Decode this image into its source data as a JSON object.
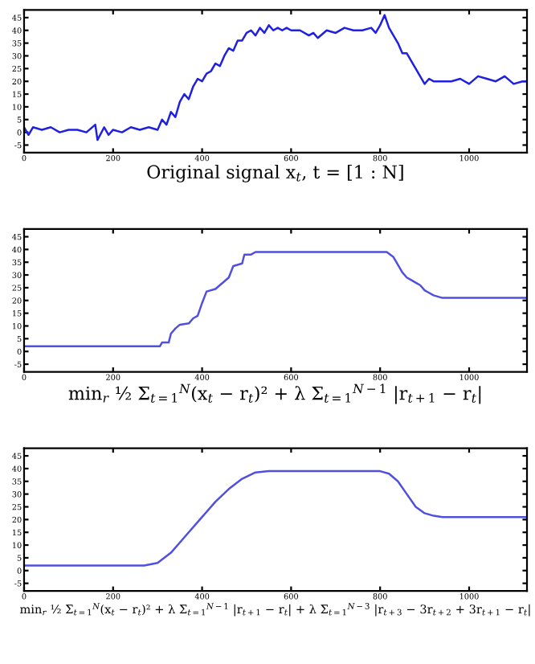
{
  "chart_data": [
    {
      "type": "line",
      "xlabel": "Original signal x$_{t}$, t = [1 : N]",
      "xlim": [
        0,
        1130
      ],
      "xticks": [
        0,
        200,
        400,
        600,
        800,
        1000
      ],
      "ylim": [
        -8,
        48
      ],
      "yticks": [
        -5,
        0,
        5,
        10,
        15,
        20,
        25,
        30,
        35,
        40,
        45
      ],
      "grid": false,
      "legend": false,
      "series": [
        {
          "color": "#2020e0",
          "x": [
            0,
            10,
            20,
            40,
            60,
            80,
            100,
            120,
            140,
            160,
            165,
            180,
            190,
            200,
            220,
            240,
            260,
            280,
            300,
            310,
            320,
            330,
            340,
            350,
            360,
            370,
            380,
            390,
            400,
            410,
            420,
            430,
            440,
            450,
            460,
            470,
            480,
            490,
            500,
            510,
            520,
            530,
            540,
            550,
            560,
            570,
            580,
            590,
            600,
            620,
            640,
            650,
            660,
            680,
            700,
            720,
            740,
            760,
            780,
            790,
            800,
            810,
            820,
            830,
            840,
            850,
            860,
            870,
            880,
            890,
            900,
            910,
            920,
            940,
            960,
            980,
            1000,
            1020,
            1040,
            1060,
            1080,
            1100,
            1120,
            1130
          ],
          "values": [
            2,
            -1,
            2,
            1,
            2,
            0,
            1,
            1,
            0,
            3,
            -3,
            2,
            -1,
            1,
            0,
            2,
            1,
            2,
            1,
            5,
            3,
            8,
            6,
            12,
            15,
            13,
            18,
            21,
            20,
            23,
            24,
            27,
            26,
            30,
            33,
            32,
            36,
            36,
            39,
            40,
            38,
            41,
            39,
            42,
            40,
            41,
            40,
            41,
            40,
            40,
            38,
            39,
            37,
            40,
            39,
            41,
            40,
            40,
            41,
            39,
            42,
            46,
            41,
            38,
            35,
            31,
            31,
            28,
            25,
            22,
            19,
            21,
            20,
            20,
            20,
            21,
            19,
            22,
            21,
            20,
            22,
            19,
            20,
            20
          ]
        }
      ]
    },
    {
      "type": "line",
      "xlabel": "min$_{r}$ ½ Σ$_{t=1}$$^{N}$(x$_{t}$ − r$_{t}$)² + λ Σ$_{t=1}$$^{N−1}$ |r$_{t+1}$ − r$_{t}$|",
      "xlim": [
        0,
        1130
      ],
      "xticks": [
        0,
        200,
        400,
        600,
        800,
        1000
      ],
      "ylim": [
        -8,
        48
      ],
      "yticks": [
        -5,
        0,
        5,
        10,
        15,
        20,
        25,
        30,
        35,
        40,
        45
      ],
      "grid": false,
      "legend": false,
      "series": [
        {
          "color": "#5050e0",
          "x": [
            0,
            305,
            310,
            325,
            330,
            340,
            350,
            370,
            380,
            390,
            400,
            410,
            430,
            440,
            460,
            470,
            490,
            495,
            510,
            520,
            815,
            830,
            840,
            850,
            860,
            870,
            880,
            890,
            900,
            910,
            920,
            940,
            1130
          ],
          "values": [
            2,
            2,
            3.5,
            3.5,
            7,
            9,
            10.5,
            11,
            13,
            14,
            19,
            23.5,
            24.5,
            26,
            29,
            33.5,
            34.5,
            38,
            38,
            39,
            39,
            37,
            34,
            31,
            29,
            28,
            27,
            26,
            24,
            23,
            22,
            21,
            21
          ]
        }
      ]
    },
    {
      "type": "line",
      "xlabel": "min$_{r}$ ½ Σ$_{t=1}$$^{N}$(x$_{t}$ − r$_{t}$)² + λ Σ$_{t=1}$$^{N−1}$ |r$_{t+1}$ − r$_{t}$| + λ Σ$_{t=1}$$^{N−3}$ |r$_{t+3}$ − 3r$_{t+2}$ + 3r$_{t+1}$ − r$_{t}$|",
      "xlim": [
        0,
        1130
      ],
      "xticks": [
        0,
        200,
        400,
        600,
        800,
        1000
      ],
      "ylim": [
        -8,
        48
      ],
      "yticks": [
        -5,
        0,
        5,
        10,
        15,
        20,
        25,
        30,
        35,
        40,
        45
      ],
      "grid": false,
      "legend": false,
      "series": [
        {
          "color": "#5050e0",
          "x": [
            0,
            270,
            300,
            330,
            360,
            400,
            430,
            460,
            490,
            520,
            550,
            800,
            820,
            840,
            860,
            880,
            900,
            920,
            940,
            1130
          ],
          "values": [
            2,
            2,
            3,
            7,
            13,
            21,
            27,
            32,
            36,
            38.5,
            39,
            39,
            38,
            35,
            30,
            25,
            22.5,
            21.5,
            21,
            21
          ]
        }
      ]
    }
  ]
}
